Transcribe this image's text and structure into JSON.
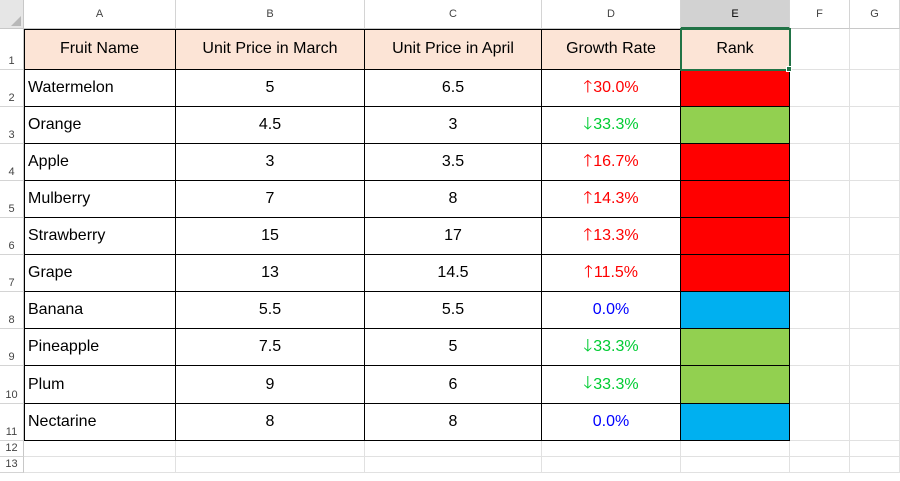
{
  "spreadsheet": {
    "column_headers": [
      "A",
      "B",
      "C",
      "D",
      "E",
      "F",
      "G"
    ],
    "selected_column": "E",
    "row_numbers": [
      "1",
      "2",
      "3",
      "4",
      "5",
      "6",
      "7",
      "8",
      "9",
      "10",
      "11",
      "12",
      "13"
    ],
    "table_headers": [
      "Fruit Name",
      "Unit Price in March",
      "Unit Price in April",
      "Growth Rate",
      "Rank"
    ],
    "rows": [
      {
        "fruit": "Watermelon",
        "march": "5",
        "april": "6.5",
        "arrow": "🡑",
        "rate": "30.0%",
        "trend": "up",
        "rank_color": "#ff0000"
      },
      {
        "fruit": "Orange",
        "march": "4.5",
        "april": "3",
        "arrow": "🡓",
        "rate": "33.3%",
        "trend": "down",
        "rank_color": "#92d050"
      },
      {
        "fruit": "Apple",
        "march": "3",
        "april": "3.5",
        "arrow": "🡑",
        "rate": "16.7%",
        "trend": "up",
        "rank_color": "#ff0000"
      },
      {
        "fruit": "Mulberry",
        "march": "7",
        "april": "8",
        "arrow": "🡑",
        "rate": "14.3%",
        "trend": "up",
        "rank_color": "#ff0000"
      },
      {
        "fruit": "Strawberry",
        "march": "15",
        "april": "17",
        "arrow": "🡑",
        "rate": "13.3%",
        "trend": "up",
        "rank_color": "#ff0000"
      },
      {
        "fruit": "Grape",
        "march": "13",
        "april": "14.5",
        "arrow": "🡑",
        "rate": "11.5%",
        "trend": "up",
        "rank_color": "#ff0000"
      },
      {
        "fruit": "Banana",
        "march": "5.5",
        "april": "5.5",
        "arrow": "",
        "rate": "0.0%",
        "trend": "flat",
        "rank_color": "#00b0f0"
      },
      {
        "fruit": "Pineapple",
        "march": "7.5",
        "april": "5",
        "arrow": "🡓",
        "rate": "33.3%",
        "trend": "down",
        "rank_color": "#92d050"
      },
      {
        "fruit": "Plum",
        "march": "9",
        "april": "6",
        "arrow": "🡓",
        "rate": "33.3%",
        "trend": "down",
        "rank_color": "#92d050"
      },
      {
        "fruit": "Nectarine",
        "march": "8",
        "april": "8",
        "arrow": "",
        "rate": "0.0%",
        "trend": "flat",
        "rank_color": "#00b0f0"
      }
    ],
    "colors": {
      "header_fill": "#fce4d6",
      "up": "#ff0000",
      "down": "#00cc33",
      "flat": "#0000ff",
      "selection": "#217346"
    },
    "icons": [
      "select-all-triangle-icon",
      "arrow-up-icon",
      "arrow-down-icon",
      "fill-handle-icon"
    ]
  }
}
